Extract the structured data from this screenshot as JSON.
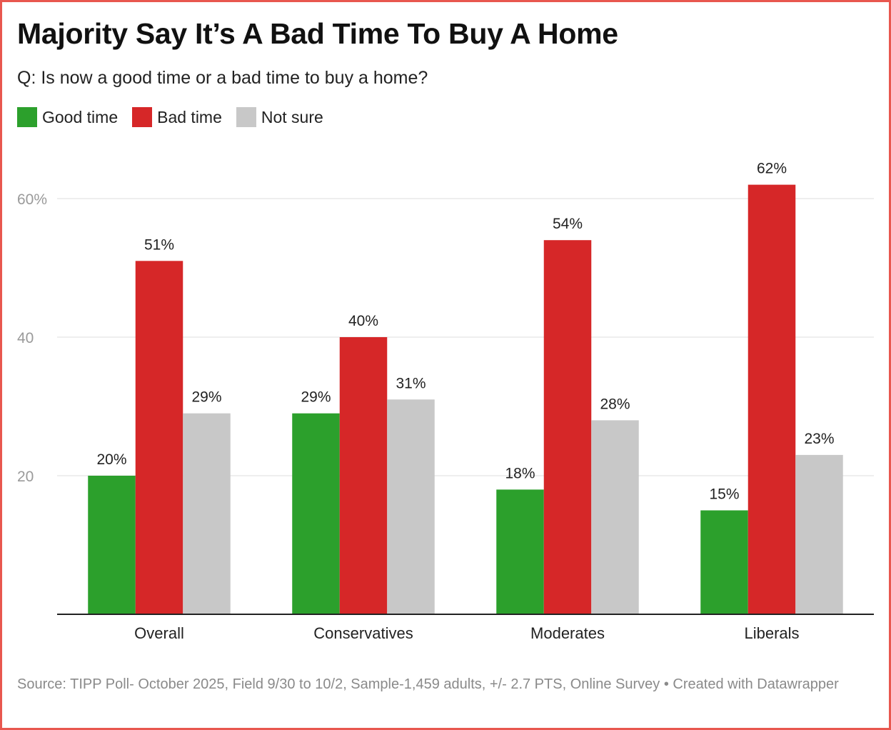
{
  "chart_data": {
    "type": "bar",
    "title": "Majority Say It’s A Bad Time To Buy A Home",
    "subtitle": "Q: Is now a good time or a bad time to buy a home?",
    "categories": [
      "Overall",
      "Conservatives",
      "Moderates",
      "Liberals"
    ],
    "series": [
      {
        "name": "Good time",
        "color": "#2ca02c",
        "values": [
          20,
          29,
          18,
          15
        ]
      },
      {
        "name": "Bad time",
        "color": "#d62728",
        "values": [
          51,
          40,
          54,
          62
        ]
      },
      {
        "name": "Not sure",
        "color": "#c8c8c8",
        "values": [
          29,
          31,
          28,
          23
        ]
      }
    ],
    "yticks": [
      20,
      40,
      60
    ],
    "ytick_labels": [
      "20",
      "40",
      "60%"
    ],
    "ylim": [
      0,
      65
    ],
    "value_suffix": "%",
    "xlabel": "",
    "ylabel": "",
    "grid": true,
    "legend": "top-left"
  },
  "footer": {
    "source": "Source: TIPP Poll- October 2025, Field 9/30 to 10/2, Sample-1,459 adults, +/- 2.7 PTS, Online Survey • Created with Datawrapper"
  }
}
